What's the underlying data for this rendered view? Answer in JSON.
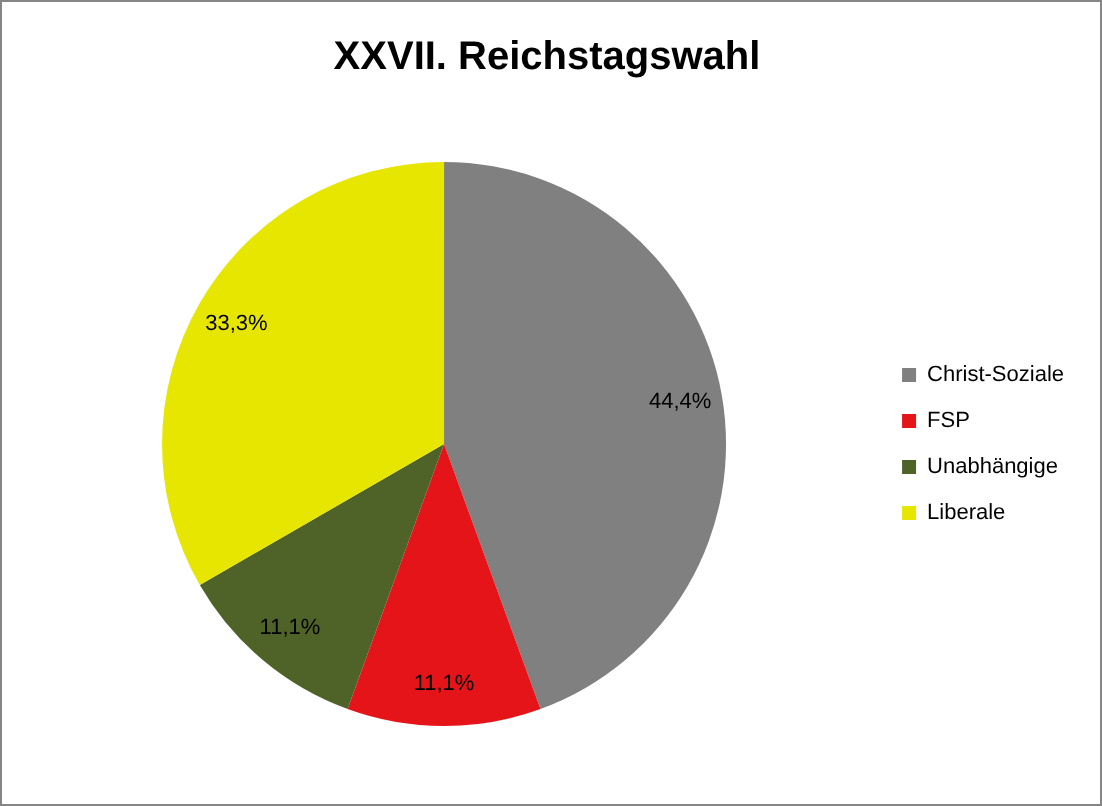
{
  "chart_data": {
    "type": "pie",
    "title": "XXVII. Reichstagswahl",
    "categories": [
      "Christ-Soziale",
      "FSP",
      "Unabhängige",
      "Liberale"
    ],
    "values": [
      44.4,
      11.1,
      11.1,
      33.3
    ],
    "value_labels": [
      "44,4%",
      "11,1%",
      "11,1%",
      "33,3%"
    ],
    "colors": [
      "#808080",
      "#e41419",
      "#4f6228",
      "#e6e600"
    ],
    "legend": "right"
  }
}
